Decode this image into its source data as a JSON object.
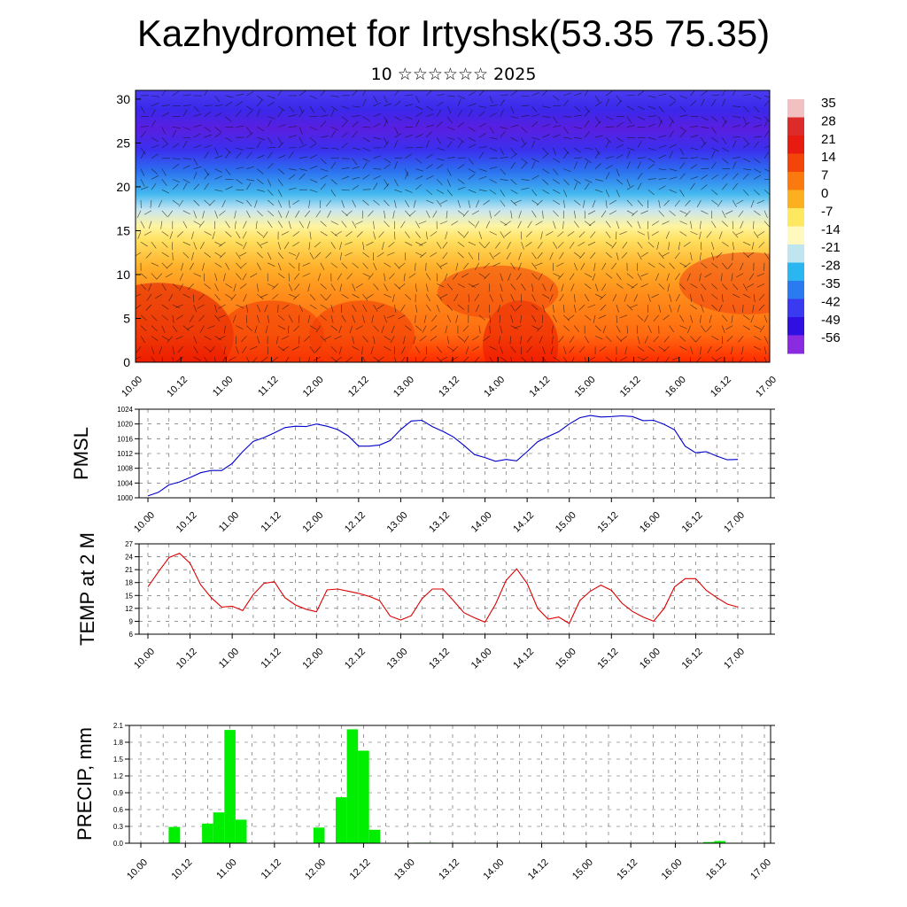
{
  "title": "Kazhydromet for Irtyshsk(53.35 75.35)",
  "subtitle": "10 ☆☆☆☆☆☆ 2025",
  "colors": {
    "pmsl_line": "#0000cc",
    "temp_line": "#dd0000",
    "precip_bar": "#00ee00",
    "grid": "#555555"
  },
  "x_ticks": [
    "10.00",
    "10.12",
    "11.00",
    "11.12",
    "12.00",
    "12.12",
    "13.00",
    "13.12",
    "14.00",
    "14.12",
    "15.00",
    "15.12",
    "16.00",
    "16.12",
    "17.00"
  ],
  "chart_data": [
    {
      "type": "heatmap",
      "name": "cross-section",
      "x_range": [
        0,
        168
      ],
      "y_ticks": [
        "0",
        "5",
        "10",
        "15",
        "20",
        "25",
        "30"
      ],
      "ylim": [
        0,
        31
      ],
      "colorbar": {
        "labels": [
          "35",
          "28",
          "21",
          "14",
          "7",
          "0",
          "-7",
          "-14",
          "-21",
          "-28",
          "-35",
          "-42",
          "-49",
          "-56"
        ],
        "colors": [
          "#f2c0c0",
          "#dd2a2a",
          "#e81b10",
          "#f3440a",
          "#fa7a10",
          "#fcb020",
          "#fde860",
          "#fff9c0",
          "#bfe6f0",
          "#2ab6f0",
          "#2a7bf0",
          "#3a3af0",
          "#3010e0",
          "#8a2be2"
        ]
      },
      "wind_barbs": true
    },
    {
      "type": "line",
      "ylabel": "PMSL",
      "ylim": [
        1000,
        1024
      ],
      "y_ticks": [
        "1000",
        "1004",
        "1008",
        "1012",
        "1016",
        "1020",
        "1024"
      ],
      "x": [
        0,
        3,
        6,
        9,
        12,
        15,
        18,
        21,
        24,
        27,
        30,
        33,
        36,
        39,
        42,
        45,
        48,
        51,
        54,
        57,
        60,
        63,
        66,
        69,
        72,
        75,
        78,
        81,
        84,
        87,
        90,
        93,
        96,
        99,
        102,
        105,
        108,
        111,
        114,
        117,
        120,
        123,
        126,
        129,
        132,
        135,
        138,
        141,
        144,
        147,
        150,
        153,
        156,
        159,
        162,
        165,
        168
      ],
      "values": [
        1000.5,
        1001.5,
        1003.5,
        1004.3,
        1005.5,
        1006.8,
        1007.4,
        1007.4,
        1009.3,
        1012.5,
        1015.3,
        1016.3,
        1017.6,
        1019.0,
        1019.4,
        1019.3,
        1020.0,
        1019.4,
        1018.5,
        1016.8,
        1014.0,
        1014.0,
        1014.3,
        1015.5,
        1018.5,
        1020.8,
        1021.0,
        1019.3,
        1018.0,
        1016.5,
        1014.2,
        1011.7,
        1010.9,
        1009.9,
        1010.4,
        1010.0,
        1012.5,
        1015.2,
        1016.6,
        1017.9,
        1020.0,
        1021.7,
        1022.3,
        1021.9,
        1022.0,
        1022.2,
        1022.0,
        1020.9,
        1021.0,
        1019.9,
        1018.4,
        1014.0,
        1012.2,
        1012.5,
        1011.3,
        1010.3,
        1010.4
      ]
    },
    {
      "type": "line",
      "ylabel": "TEMP at 2 M",
      "ylim": [
        6,
        27
      ],
      "y_ticks": [
        "6",
        "9",
        "12",
        "15",
        "18",
        "21",
        "24",
        "27"
      ],
      "x": [
        0,
        3,
        6,
        9,
        12,
        15,
        18,
        21,
        24,
        27,
        30,
        33,
        36,
        39,
        42,
        45,
        48,
        51,
        54,
        57,
        60,
        63,
        66,
        69,
        72,
        75,
        78,
        81,
        84,
        87,
        90,
        93,
        96,
        99,
        102,
        105,
        108,
        111,
        114,
        117,
        120,
        123,
        126,
        129,
        132,
        135,
        138,
        141,
        144,
        147,
        150,
        153,
        156,
        159,
        162,
        165,
        168
      ],
      "values": [
        17,
        20.5,
        23.8,
        24.8,
        22.5,
        17.5,
        14.5,
        12.3,
        12.5,
        11.5,
        15.2,
        17.8,
        18.2,
        14.5,
        12.8,
        11.8,
        11.2,
        16.3,
        16.5,
        16.0,
        15.5,
        14.8,
        13.8,
        10.2,
        9.3,
        10.3,
        14.2,
        16.5,
        16.5,
        13.8,
        11.0,
        9.8,
        8.8,
        13.0,
        18.5,
        21.2,
        17.8,
        12.0,
        9.5,
        10.0,
        8.5,
        13.8,
        16.0,
        17.4,
        16.2,
        13.2,
        11.3,
        10.0,
        9.0,
        12.0,
        17.0,
        18.9,
        18.9,
        16.2,
        14.5,
        13.0,
        12.3
      ]
    },
    {
      "type": "bar",
      "ylabel": "PRECIP, mm",
      "ylim": [
        0,
        2.1
      ],
      "y_ticks": [
        "0.0",
        "0.3",
        "0.6",
        "0.9",
        "1.2",
        "1.5",
        "1.8",
        "2.1"
      ],
      "bar_width_hours": 3,
      "bars": [
        {
          "x": 9,
          "value": 0.29
        },
        {
          "x": 18,
          "value": 0.35
        },
        {
          "x": 21,
          "value": 0.55
        },
        {
          "x": 24,
          "value": 2.02
        },
        {
          "x": 27,
          "value": 0.42
        },
        {
          "x": 48,
          "value": 0.28
        },
        {
          "x": 54,
          "value": 0.82
        },
        {
          "x": 57,
          "value": 2.03
        },
        {
          "x": 60,
          "value": 1.65
        },
        {
          "x": 63,
          "value": 0.24
        },
        {
          "x": 75,
          "value": 0.01
        },
        {
          "x": 78,
          "value": 0.01
        },
        {
          "x": 153,
          "value": 0.02
        },
        {
          "x": 156,
          "value": 0.04
        }
      ]
    }
  ]
}
